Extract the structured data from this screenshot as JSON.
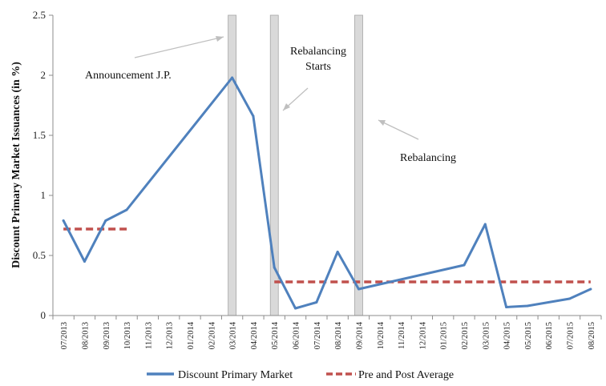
{
  "chart_data": {
    "type": "line",
    "title": "",
    "xlabel": "",
    "ylabel": "Discount Primary Market Issuances (in %)",
    "ylim": [
      0,
      2.5
    ],
    "yticks": [
      "0",
      "0.5",
      "1",
      "1.5",
      "2",
      "2.5"
    ],
    "grid": false,
    "legend_position": "bottom",
    "categories": [
      "07/2013",
      "08/2013",
      "09/2013",
      "10/2013",
      "11/2013",
      "12/2013",
      "01/2014",
      "02/2014",
      "03/2014",
      "04/2014",
      "05/2014",
      "06/2014",
      "07/2014",
      "08/2014",
      "09/2014",
      "10/2014",
      "11/2014",
      "12/2014",
      "01/2015",
      "02/2015",
      "03/2015",
      "04/2015",
      "05/2015",
      "06/2015",
      "07/2015",
      "08/2015"
    ],
    "series": [
      {
        "name": "Discount Primary Market",
        "color": "#4f81bd",
        "style": "solid",
        "values": [
          0.79,
          0.45,
          0.79,
          0.88,
          null,
          null,
          null,
          null,
          1.98,
          1.66,
          0.4,
          0.06,
          0.11,
          0.53,
          0.22,
          null,
          null,
          null,
          null,
          0.42,
          0.76,
          0.07,
          0.08,
          null,
          0.14,
          0.22
        ]
      },
      {
        "name": "Pre and Post Average",
        "color": "#c0504d",
        "style": "dashed",
        "segments": [
          {
            "from": "07/2013",
            "to": "10/2013",
            "value": 0.72
          },
          {
            "from": "05/2014",
            "to": "08/2015",
            "value": 0.28
          }
        ]
      }
    ],
    "highlight_bands": [
      "03/2014",
      "05/2014",
      "09/2014"
    ],
    "annotations": [
      {
        "text": "Announcement J.P.",
        "points_to": "03/2014"
      },
      {
        "text": "Rebalancing",
        "text2": "Starts",
        "points_to": "05/2014"
      },
      {
        "text": "Rebalancing",
        "points_to": "09/2014"
      }
    ]
  }
}
